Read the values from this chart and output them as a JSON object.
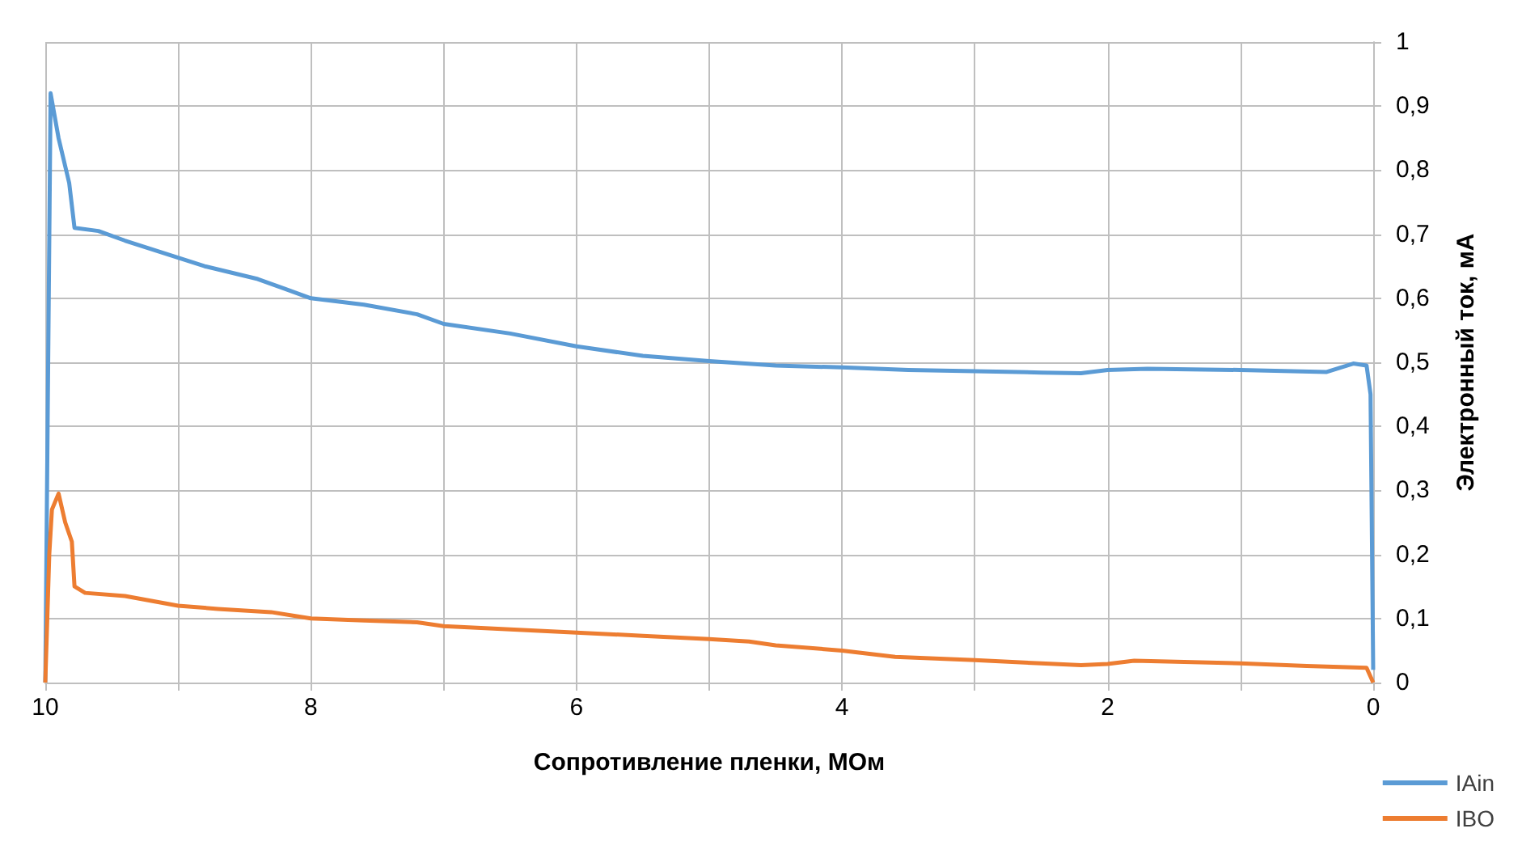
{
  "chart_data": {
    "type": "line",
    "xlabel": "Сопротивление пленки, МОм",
    "ylabel": "Электронный ток, мА",
    "xlim": [
      10,
      0
    ],
    "xticks": [
      10,
      {
        "value": 9,
        "label": null
      },
      8,
      {
        "value": 7,
        "label": null
      },
      6,
      {
        "value": 5,
        "label": null
      },
      4,
      {
        "value": 3,
        "label": null
      },
      2,
      {
        "value": 1,
        "label": null
      },
      0
    ],
    "ylim": [
      0,
      1
    ],
    "yticks": [
      0,
      {
        "value": 0.1,
        "label": "0,1"
      },
      {
        "value": 0.2,
        "label": "0,2"
      },
      {
        "value": 0.3,
        "label": "0,3"
      },
      {
        "value": 0.4,
        "label": "0,4"
      },
      {
        "value": 0.5,
        "label": "0,5"
      },
      {
        "value": 0.6,
        "label": "0,6"
      },
      {
        "value": 0.7,
        "label": "0,7"
      },
      {
        "value": 0.8,
        "label": "0,8"
      },
      {
        "value": 0.9,
        "label": "0,9"
      },
      1
    ],
    "grid": true,
    "legend": "bottom right",
    "series": [
      {
        "name": "IAin",
        "color": "#5b9bd5",
        "x": [
          10,
          9.96,
          9.9,
          9.82,
          9.78,
          9.6,
          9.4,
          9.1,
          8.8,
          8.4,
          8.2,
          8,
          7.6,
          7.2,
          7,
          6.5,
          6,
          5.5,
          5,
          4.5,
          4,
          3.5,
          3,
          2.5,
          2.2,
          2,
          1.7,
          1,
          0.35,
          0.15,
          0.05,
          0.02,
          0
        ],
        "values": [
          0,
          0.92,
          0.85,
          0.78,
          0.71,
          0.705,
          0.69,
          0.67,
          0.65,
          0.63,
          0.615,
          0.6,
          0.59,
          0.575,
          0.56,
          0.545,
          0.525,
          0.51,
          0.502,
          0.495,
          0.492,
          0.488,
          0.486,
          0.484,
          0.483,
          0.488,
          0.49,
          0.488,
          0.485,
          0.498,
          0.495,
          0.45,
          0.02
        ]
      },
      {
        "name": "IBO",
        "color": "#ed7d31",
        "x": [
          10,
          9.97,
          9.95,
          9.9,
          9.85,
          9.8,
          9.78,
          9.7,
          9.4,
          9,
          8.7,
          8.3,
          8,
          7.6,
          7.2,
          7,
          6.5,
          6,
          5.5,
          5,
          4.7,
          4.5,
          4,
          3.6,
          3,
          2.5,
          2.2,
          2,
          1.8,
          1,
          0.5,
          0.05,
          0
        ],
        "values": [
          0,
          0.2,
          0.27,
          0.295,
          0.25,
          0.22,
          0.15,
          0.14,
          0.135,
          0.12,
          0.115,
          0.11,
          0.1,
          0.097,
          0.094,
          0.088,
          0.083,
          0.078,
          0.073,
          0.068,
          0.064,
          0.058,
          0.05,
          0.04,
          0.035,
          0.03,
          0.027,
          0.029,
          0.034,
          0.03,
          0.026,
          0.023,
          0
        ]
      }
    ]
  }
}
